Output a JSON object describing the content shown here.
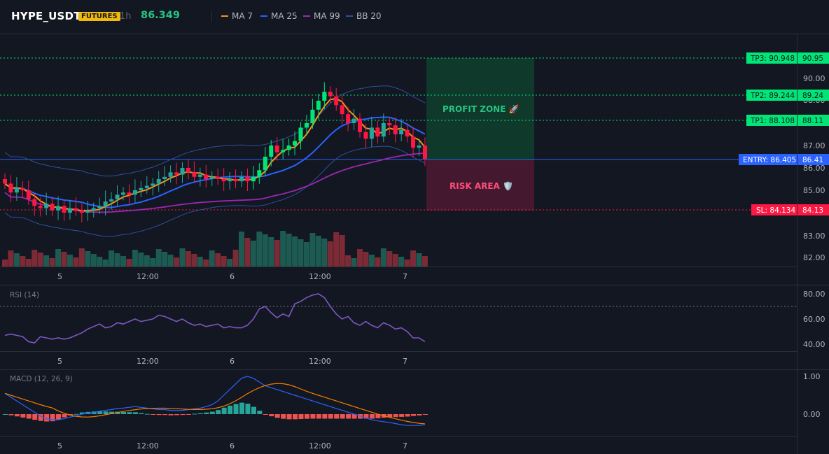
{
  "header": {
    "symbol": "HYPE_USDT",
    "badge": "FUTURES",
    "timeframe": "1h",
    "price": "86.349",
    "legend": [
      {
        "label": "MA 7",
        "color": "#f7931a"
      },
      {
        "label": "MA 25",
        "color": "#2962ff"
      },
      {
        "label": "MA 99",
        "color": "#9c27b0"
      },
      {
        "label": "BB 20",
        "color": "#2c4f9e"
      }
    ]
  },
  "price_axis": [
    "90.00",
    "88.00",
    "87.00",
    "86.00",
    "85.00",
    "83.00",
    "82.00"
  ],
  "levels": {
    "tp3": {
      "label": "TP3: 90.948",
      "value": "90.95",
      "color": "#00e676"
    },
    "tp2": {
      "label": "TP2: 89.244",
      "value": "89.24",
      "color": "#00e676"
    },
    "tp1": {
      "label": "TP1: 88.108",
      "value": "88.11",
      "color": "#00e676"
    },
    "entry": {
      "label": "ENTRY: 86.405",
      "value": "86.41",
      "color": "#2962ff"
    },
    "sl": {
      "label": "SL: 84.134",
      "value": "84.13",
      "color": "#ff1744"
    }
  },
  "zones": {
    "profit": "PROFIT ZONE 🚀",
    "risk": "RISK AREA 🛡️"
  },
  "time_axis": [
    "5",
    "12:00",
    "6",
    "12:00",
    "7"
  ],
  "rsi": {
    "title": "RSI (14)",
    "axis": [
      "80.00",
      "60.00",
      "40.00"
    ]
  },
  "macd": {
    "title": "MACD (12, 26, 9)",
    "axis": [
      "1.00",
      "0.00"
    ]
  },
  "colors": {
    "up": "#26a69a",
    "up_bright": "#00e676",
    "down": "#ff1744",
    "vol_up": "#1c5a52",
    "vol_down": "#7c2a35"
  }
}
